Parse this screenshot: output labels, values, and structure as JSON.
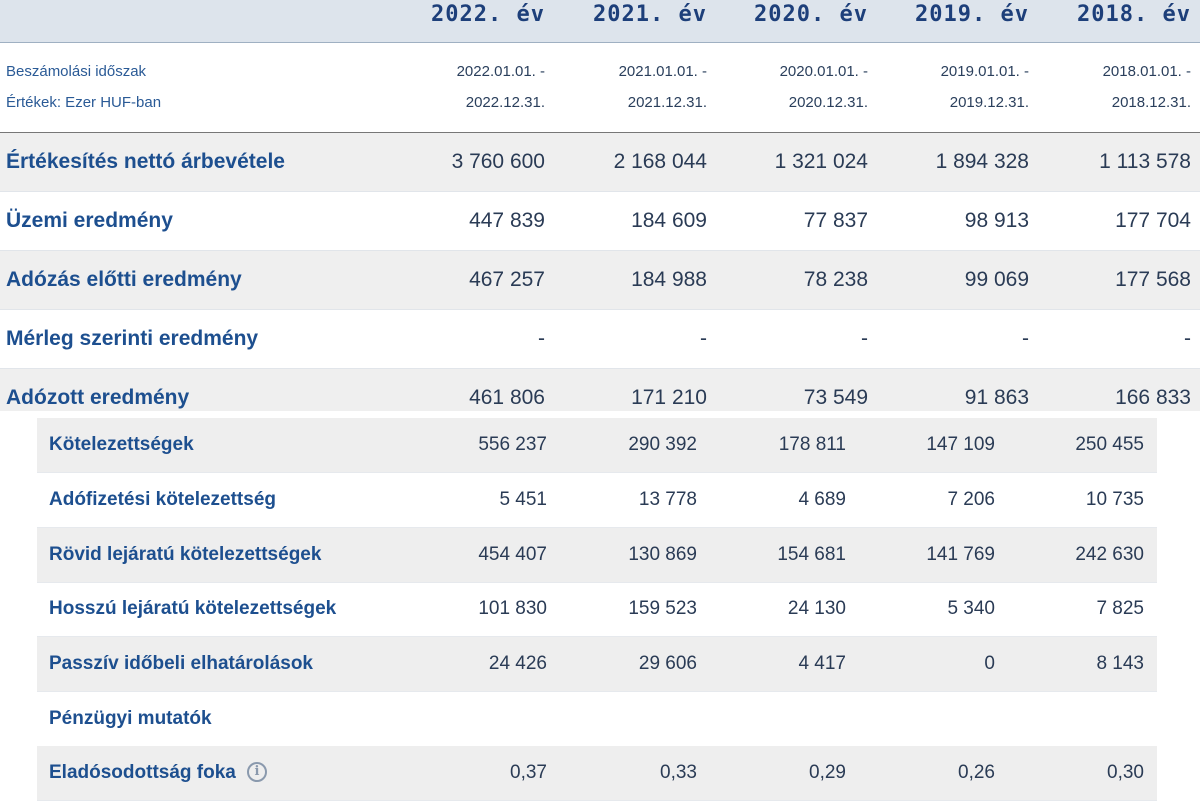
{
  "years": [
    "2022. év",
    "2021. év",
    "2020. év",
    "2019. év",
    "2018. év"
  ],
  "period": {
    "label_1": "Beszámolási időszak",
    "label_2": "Értékek: Ezer HUF-ban",
    "starts": [
      "2022.01.01. -",
      "2021.01.01. -",
      "2020.01.01. -",
      "2019.01.01. -",
      "2018.01.01. -"
    ],
    "ends": [
      "2022.12.31.",
      "2021.12.31.",
      "2020.12.31.",
      "2019.12.31.",
      "2018.12.31."
    ]
  },
  "main_rows": [
    {
      "label": "Értékesítés nettó árbevétele",
      "values": [
        "3 760 600",
        "2 168 044",
        "1 321 024",
        "1 894 328",
        "1 113 578"
      ]
    },
    {
      "label": "Üzemi eredmény",
      "values": [
        "447 839",
        "184 609",
        "77 837",
        "98 913",
        "177 704"
      ]
    },
    {
      "label": "Adózás előtti eredmény",
      "values": [
        "467 257",
        "184 988",
        "78 238",
        "99 069",
        "177 568"
      ]
    },
    {
      "label": "Mérleg szerinti eredmény",
      "values": [
        "-",
        "-",
        "-",
        "-",
        "-"
      ]
    },
    {
      "label": "Adózott eredmény",
      "values": [
        "461 806",
        "171 210",
        "73 549",
        "91 863",
        "166 833"
      ]
    }
  ],
  "sub_rows": [
    {
      "label": "Kötelezettségek",
      "values": [
        "556 237",
        "290 392",
        "178 811",
        "147 109",
        "250 455"
      ]
    },
    {
      "label": "Adófizetési kötelezettség",
      "values": [
        "5 451",
        "13 778",
        "4 689",
        "7 206",
        "10 735"
      ]
    },
    {
      "label": "Rövid lejáratú kötelezettségek",
      "values": [
        "454 407",
        "130 869",
        "154 681",
        "141 769",
        "242 630"
      ]
    },
    {
      "label": "Hosszú lejáratú kötelezettségek",
      "values": [
        "101 830",
        "159 523",
        "24 130",
        "5 340",
        "7 825"
      ]
    },
    {
      "label": "Passzív időbeli elhatárolások",
      "values": [
        "24 426",
        "29 606",
        "4 417",
        "0",
        "8 143"
      ]
    },
    {
      "label": "Pénzügyi mutatók",
      "values": [
        "",
        "",
        "",
        "",
        ""
      ]
    },
    {
      "label": "Eladósodottság foka",
      "values": [
        "0,37",
        "0,33",
        "0,29",
        "0,26",
        "0,30"
      ],
      "icon": "info-icon",
      "info_glyph": "i"
    }
  ]
}
